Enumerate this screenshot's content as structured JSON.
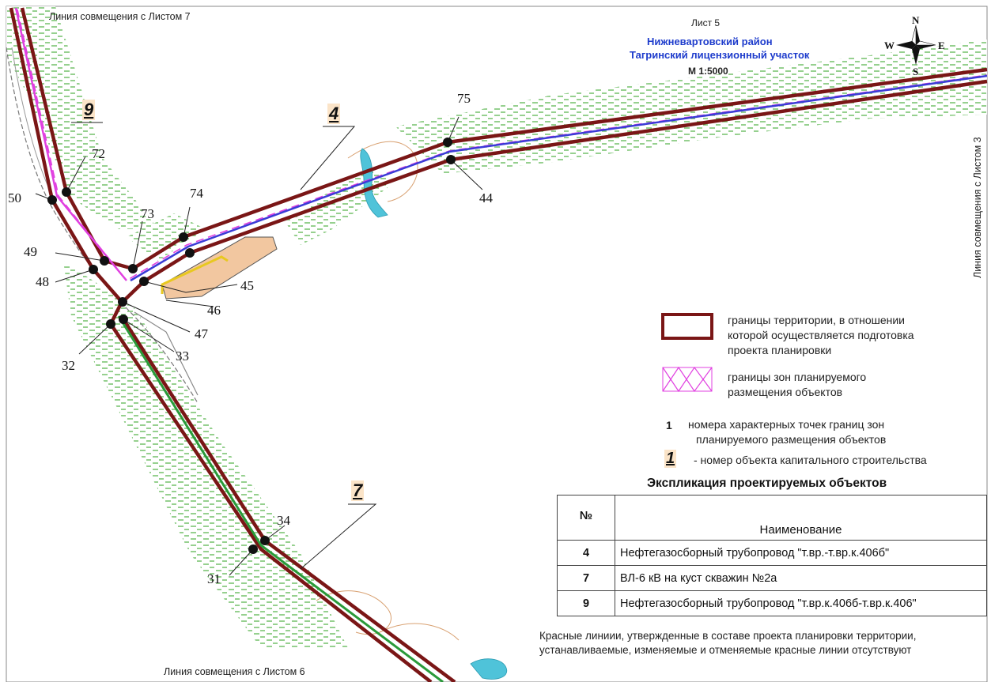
{
  "header": {
    "sheet": "Лист 5",
    "district": "Нижневартовский район",
    "license_area": "Тагринский лицензионный участок",
    "scale": "М 1:5000"
  },
  "compass": {
    "n": "N",
    "s": "S",
    "e": "E",
    "w": "W",
    "icon": "compass-rose-icon"
  },
  "match_lines": {
    "top": "Линия совмещения с Листом 7",
    "right": "Линия совмещения с Листом 3",
    "bottom": "Линия совмещения с Листом 6"
  },
  "points": [
    "72",
    "50",
    "73",
    "74",
    "49",
    "48",
    "45",
    "46",
    "47",
    "32",
    "33",
    "75",
    "44",
    "34",
    "31"
  ],
  "objects": [
    "9",
    "4",
    "7"
  ],
  "legend": {
    "territory": "границы территории, в отношении которой осуществляется подготовка проекта планировки",
    "territory_l1": "границы территории, в отношении",
    "territory_l2": "которой осуществляется подготовка",
    "territory_l3": "проекта планировки",
    "zones_l1": "границы зон планируемого",
    "zones_l2": "размещения объектов",
    "points_sample": "1",
    "points_l1": "номера характерных точек границ зон",
    "points_l2": "планируемого размещения объектов",
    "object_sample": "1",
    "object_label": "- номер объекта капитального строительства"
  },
  "explication": {
    "title": "Экспликация проектируемых объектов",
    "col_num": "№",
    "col_name": "Наименование",
    "rows": [
      {
        "num": "4",
        "name": "Нефтегазосборный трубопровод \"т.вр.-т.вр.к.406б\""
      },
      {
        "num": "7",
        "name": "ВЛ-6 кВ на куст скважин №2а"
      },
      {
        "num": "9",
        "name": "Нефтегазосборный трубопровод \"т.вр.к.406б-т.вр.к.406\""
      }
    ]
  },
  "note_l1": "Красные линиии, утвержденные в составе проекта планировки территории,",
  "note_l2": "устанавливаемые, изменяемые и отменяемые красные линии отсутствуют",
  "colors": {
    "territory": "#7a1616",
    "zone": "#e040e0",
    "pipeline": "#3b3bd6",
    "powerline": "#2a9a3a",
    "forest": "#4caf3f",
    "water": "#4fc3d9"
  }
}
